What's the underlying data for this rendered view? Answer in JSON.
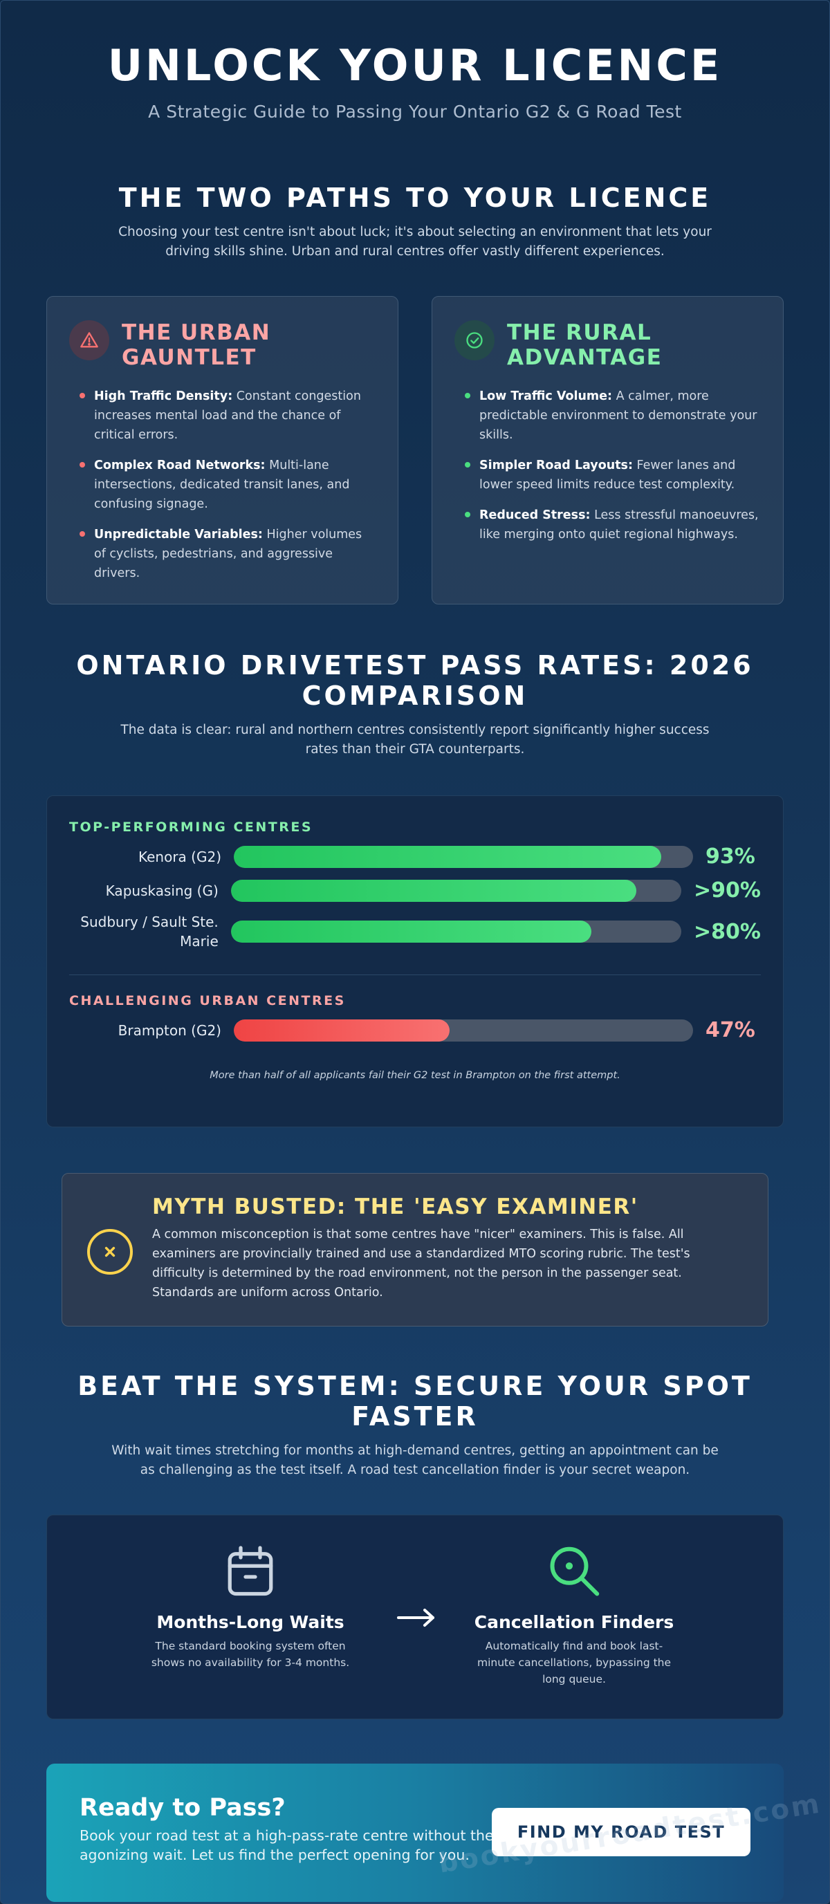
{
  "hero": {
    "title": "UNLOCK YOUR LICENCE",
    "subtitle": "A Strategic Guide to Passing Your Ontario G2 & G Road Test"
  },
  "paths": {
    "title": "THE TWO PATHS TO YOUR LICENCE",
    "description": "Choosing your test centre isn't about luck; it's about selecting an environment that lets your driving skills shine. Urban and rural centres offer vastly different experiences.",
    "urban": {
      "icon": "warning-triangle-icon",
      "title_line1": "THE URBAN",
      "title_line2": "GAUNTLET",
      "items": [
        {
          "label": "High Traffic Density:",
          "text": " Constant congestion increases mental load and the chance of critical errors."
        },
        {
          "label": "Complex Road Networks:",
          "text": " Multi-lane intersections, dedicated transit lanes, and confusing signage."
        },
        {
          "label": "Unpredictable Variables:",
          "text": " Higher volumes of cyclists, pedestrians, and aggressive drivers."
        }
      ]
    },
    "rural": {
      "icon": "check-circle-icon",
      "title_line1": "THE RURAL",
      "title_line2": "ADVANTAGE",
      "items": [
        {
          "label": "Low Traffic Volume:",
          "text": " A calmer, more predictable environment to demonstrate your skills."
        },
        {
          "label": "Simpler Road Layouts:",
          "text": " Fewer lanes and lower speed limits reduce test complexity."
        },
        {
          "label": "Reduced Stress:",
          "text": " Less stressful manoeuvres, like merging onto quiet regional highways."
        }
      ]
    }
  },
  "rates": {
    "title_line1": "ONTARIO DRIVETEST PASS RATES: 2026",
    "title_line2": "COMPARISON",
    "description": "The data is clear: rural and northern centres consistently report significantly higher success rates than their GTA counterparts.",
    "top_label": "TOP-PERFORMING CENTRES",
    "urban_label": "CHALLENGING URBAN CENTRES",
    "note": "More than half of all applicants fail their G2 test in Brampton on the first attempt."
  },
  "chart_data": {
    "type": "bar",
    "orientation": "horizontal",
    "ylim": [
      0,
      100
    ],
    "groups": [
      {
        "name": "TOP-PERFORMING CENTRES",
        "color": "#22c55e",
        "bars": [
          {
            "label": "Kenora (G2)",
            "value": 93,
            "display": "93%"
          },
          {
            "label": "Kapuskasing (G)",
            "value": 90,
            "display": ">90%"
          },
          {
            "label": "Sudbury / Sault Ste. Marie",
            "value": 80,
            "display": ">80%"
          }
        ]
      },
      {
        "name": "CHALLENGING URBAN CENTRES",
        "color": "#ef4444",
        "bars": [
          {
            "label": "Brampton (G2)",
            "value": 47,
            "display": "47%"
          }
        ]
      }
    ]
  },
  "myth": {
    "icon": "x-circle-icon",
    "title": "MYTH BUSTED: THE 'EASY EXAMINER'",
    "text": "A common misconception is that some centres have \"nicer\" examiners. This is false. All examiners are provincially trained and use a standardized MTO scoring rubric. The test's difficulty is determined by the road environment, not the person in the passenger seat. Standards are uniform across Ontario."
  },
  "beat": {
    "title_line1": "BEAT THE SYSTEM: SECURE YOUR SPOT",
    "title_line2": "FASTER",
    "description": "With wait times stretching for months at high-demand centres, getting an appointment can be as challenging as the test itself. A road test cancellation finder is your secret weapon.",
    "left": {
      "icon": "calendar-icon",
      "title": "Months-Long Waits",
      "text": "The standard booking system often shows no availability for 3-4 months."
    },
    "arrow_icon": "arrow-right-icon",
    "right": {
      "icon": "search-icon",
      "title": "Cancellation Finders",
      "text": "Automatically find and book last-minute cancellations, bypassing the long queue."
    }
  },
  "cta": {
    "title": "Ready to Pass?",
    "text": "Book your road test at a high-pass-rate centre without the agonizing wait. Let us find the perfect opening for you.",
    "button_label": "FIND MY ROAD TEST"
  },
  "watermark": "bookyourroadtest.com",
  "colors": {
    "urban_accent": "#fca5a5",
    "rural_accent": "#86efac",
    "myth_accent": "#fde68a",
    "cta_button_text": "#16385e"
  }
}
